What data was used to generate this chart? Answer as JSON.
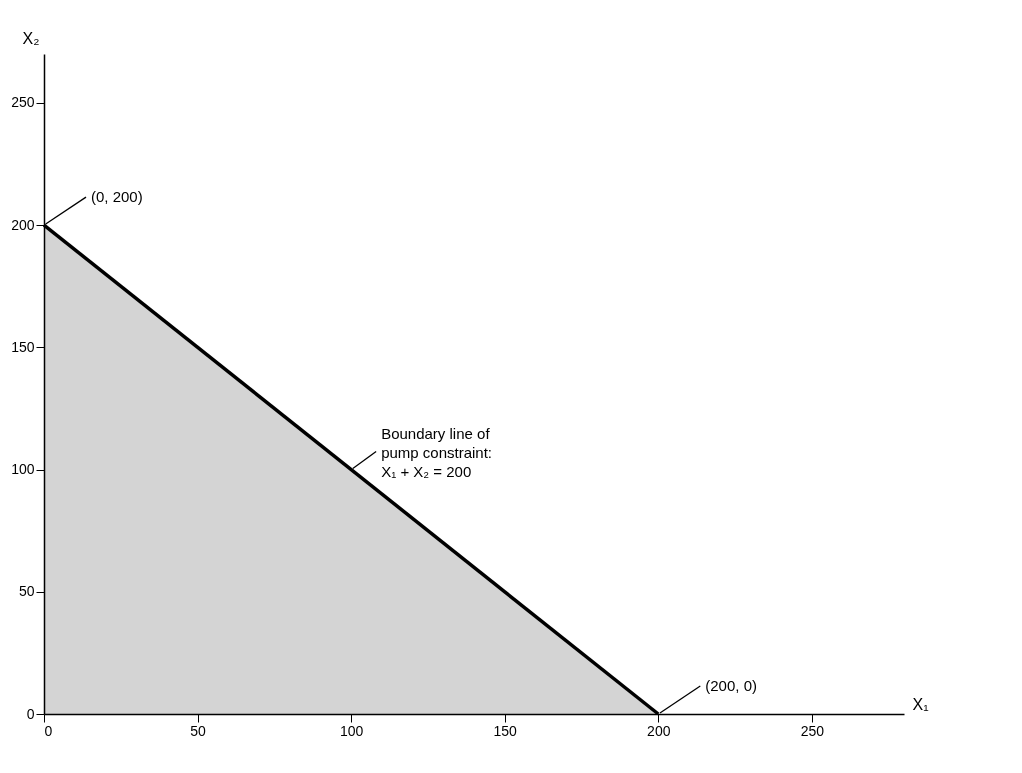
{
  "chart_data": {
    "type": "area",
    "xlabel": "X₁",
    "ylabel": "X₂",
    "xlim": [
      0,
      280
    ],
    "ylim": [
      0,
      270
    ],
    "xticks": [
      0,
      50,
      100,
      150,
      200,
      250
    ],
    "yticks": [
      0,
      50,
      100,
      150,
      200,
      250
    ],
    "grid": false,
    "line_style": "solid",
    "x": [
      0,
      200
    ],
    "series": [
      {
        "color": "#000000",
        "values": [
          200,
          0
        ]
      }
    ],
    "annotations": [
      {
        "text": "(0, 200)",
        "x": 0,
        "y": 200
      },
      {
        "text": "Boundary line of\npump constraint:\nX₁ + X₂ = 200",
        "x": 100,
        "y": 100
      },
      {
        "text": "(200, 0)",
        "x": 200,
        "y": 0
      }
    ]
  }
}
